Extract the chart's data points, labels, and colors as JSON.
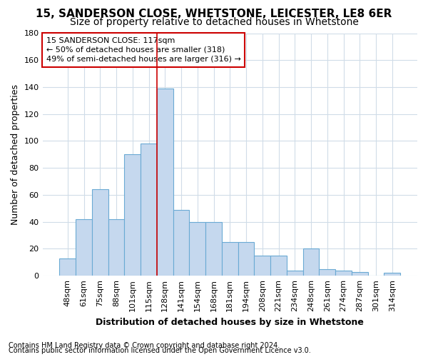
{
  "title1": "15, SANDERSON CLOSE, WHETSTONE, LEICESTER, LE8 6ER",
  "title2": "Size of property relative to detached houses in Whetstone",
  "xlabel": "Distribution of detached houses by size in Whetstone",
  "ylabel": "Number of detached properties",
  "bar_labels": [
    "48sqm",
    "61sqm",
    "75sqm",
    "88sqm",
    "101sqm",
    "115sqm",
    "128sqm",
    "141sqm",
    "154sqm",
    "168sqm",
    "181sqm",
    "194sqm",
    "208sqm",
    "221sqm",
    "234sqm",
    "248sqm",
    "261sqm",
    "274sqm",
    "287sqm",
    "301sqm",
    "314sqm"
  ],
  "bar_values": [
    13,
    42,
    64,
    42,
    90,
    98,
    139,
    49,
    40,
    40,
    25,
    25,
    15,
    15,
    4,
    20,
    5,
    4,
    3,
    0,
    2
  ],
  "bar_color": "#c5d8ee",
  "bar_edge_color": "#6aaad4",
  "vline_x": 5.5,
  "vline_color": "#cc0000",
  "annotation_line1": "15 SANDERSON CLOSE: 117sqm",
  "annotation_line2": "← 50% of detached houses are smaller (318)",
  "annotation_line3": "49% of semi-detached houses are larger (316) →",
  "annotation_box_facecolor": "white",
  "annotation_box_edgecolor": "#cc0000",
  "ylim": [
    0,
    180
  ],
  "yticks": [
    0,
    20,
    40,
    60,
    80,
    100,
    120,
    140,
    160,
    180
  ],
  "footer1": "Contains HM Land Registry data © Crown copyright and database right 2024.",
  "footer2": "Contains public sector information licensed under the Open Government Licence v3.0.",
  "bg_color": "#ffffff",
  "plot_bg_color": "#ffffff",
  "grid_color": "#d0dce8",
  "title1_fontsize": 11,
  "title2_fontsize": 10,
  "xlabel_fontsize": 9,
  "ylabel_fontsize": 9,
  "tick_fontsize": 8,
  "xtick_fontsize": 8,
  "footer_fontsize": 7,
  "annotation_fontsize": 8
}
